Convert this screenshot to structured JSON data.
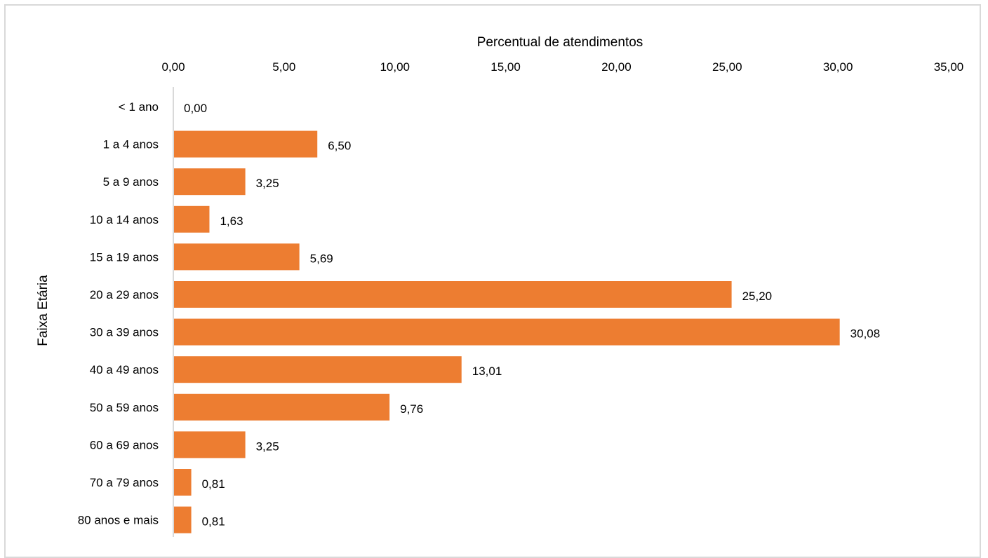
{
  "colors": {
    "bar": "#ED7D31",
    "axis_line": "#d9d9d9",
    "frame": "#d9d9d9"
  },
  "chart_data": {
    "type": "bar",
    "orientation": "horizontal",
    "xlabel": "Percentual de atendimentos",
    "ylabel": "Faixa Etária",
    "xlim": [
      0,
      35
    ],
    "x_ticks": [
      "0,00",
      "5,00",
      "10,00",
      "15,00",
      "20,00",
      "25,00",
      "30,00",
      "35,00"
    ],
    "x_axis_position": "top",
    "grid": false,
    "legend": "none",
    "categories": [
      "< 1 ano",
      "1 a 4 anos",
      "5 a 9 anos",
      "10 a 14 anos",
      "15 a 19 anos",
      "20 a 29 anos",
      "30 a 39 anos",
      "40 a 49 anos",
      "50 a 59 anos",
      "60 a 69 anos",
      "70 a 79 anos",
      "80 anos e mais"
    ],
    "values": [
      0.0,
      6.5,
      3.25,
      1.63,
      5.69,
      25.2,
      30.08,
      13.01,
      9.76,
      3.25,
      0.81,
      0.81
    ],
    "value_labels": [
      "0,00",
      "6,50",
      "3,25",
      "1,63",
      "5,69",
      "25,20",
      "30,08",
      "13,01",
      "9,76",
      "3,25",
      "0,81",
      "0,81"
    ]
  }
}
